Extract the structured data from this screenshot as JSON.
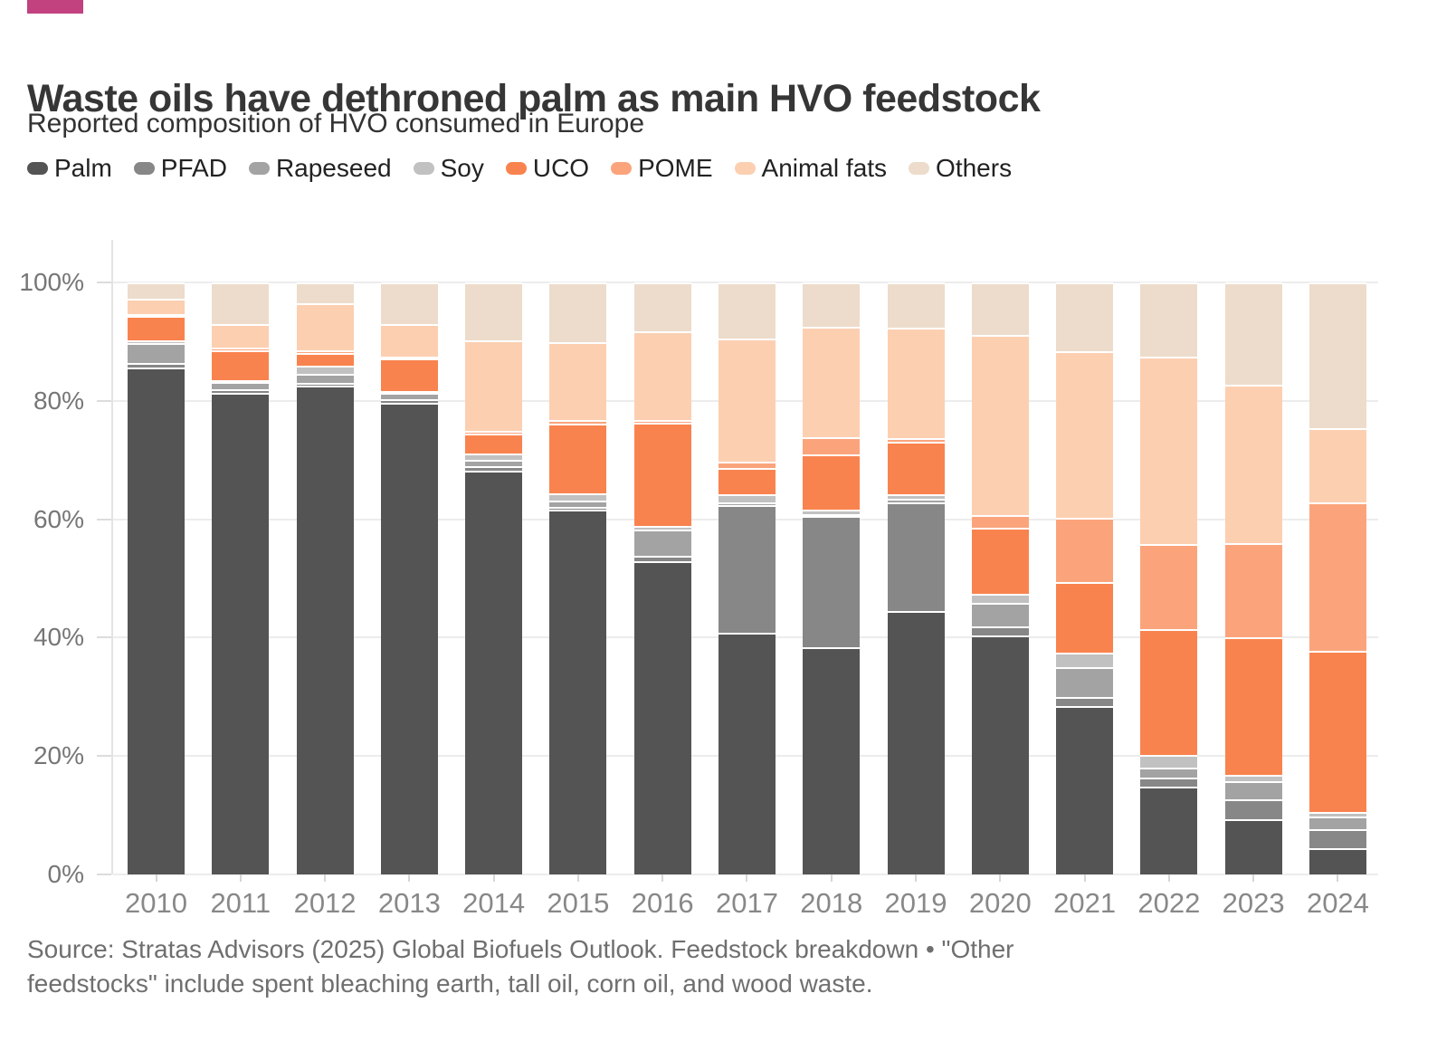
{
  "header": {
    "brand_color": "#c2417f",
    "title": "Waste oils have dethroned palm as main HVO feedstock",
    "subtitle": "Reported composition of HVO consumed in Europe"
  },
  "legend": [
    {
      "label": "Palm",
      "color": "#545454"
    },
    {
      "label": "PFAD",
      "color": "#878787"
    },
    {
      "label": "Rapeseed",
      "color": "#a3a3a3"
    },
    {
      "label": "Soy",
      "color": "#c1c1c1"
    },
    {
      "label": "UCO",
      "color": "#f9834e"
    },
    {
      "label": "POME",
      "color": "#fba47c"
    },
    {
      "label": "Animal fats",
      "color": "#fccfb1"
    },
    {
      "label": "Others",
      "color": "#eddccb"
    }
  ],
  "chart_data": {
    "type": "bar",
    "stacked": true,
    "unit": "%",
    "title": "Waste oils have dethroned palm as main HVO feedstock",
    "subtitle": "Reported composition of HVO consumed in Europe",
    "categories": [
      "2010",
      "2011",
      "2012",
      "2013",
      "2014",
      "2015",
      "2016",
      "2017",
      "2018",
      "2019",
      "2020",
      "2021",
      "2022",
      "2023",
      "2024"
    ],
    "series": [
      {
        "name": "Palm",
        "color": "#545454",
        "values": [
          85.6,
          81.4,
          82.6,
          79.6,
          68.2,
          61.6,
          52.9,
          40.9,
          38.4,
          44.5,
          40.4,
          28.5,
          14.9,
          9.3,
          4.4
        ]
      },
      {
        "name": "PFAD",
        "color": "#878787",
        "values": [
          0.8,
          0.5,
          0.5,
          0.7,
          0.7,
          0.5,
          0.9,
          21.5,
          22.1,
          18.4,
          1.5,
          1.5,
          1.5,
          3.4,
          3.2
        ]
      },
      {
        "name": "Rapeseed",
        "color": "#a3a3a3",
        "values": [
          3.3,
          1.3,
          1.4,
          1.1,
          1.1,
          1.1,
          4.5,
          0.4,
          0.4,
          0.5,
          4.0,
          5.0,
          1.7,
          3.0,
          2.2
        ]
      },
      {
        "name": "Soy",
        "color": "#c1c1c1",
        "values": [
          0.5,
          0.3,
          1.5,
          0.3,
          1.1,
          1.2,
          0.6,
          1.5,
          0.8,
          0.8,
          1.5,
          2.5,
          2.1,
          1.1,
          0.7
        ]
      },
      {
        "name": "UCO",
        "color": "#f9834e",
        "values": [
          4.1,
          5.1,
          2.1,
          5.4,
          3.4,
          11.8,
          17.4,
          4.3,
          9.3,
          8.9,
          11.1,
          11.9,
          21.2,
          23.3,
          27.3
        ]
      },
      {
        "name": "POME",
        "color": "#fba47c",
        "values": [
          0.4,
          0.4,
          0.4,
          0.4,
          0.5,
          0.5,
          0.5,
          1.2,
          2.9,
          0.6,
          2.2,
          10.9,
          14.4,
          15.9,
          25.1
        ]
      },
      {
        "name": "Animal fats",
        "color": "#fccfb1",
        "values": [
          2.6,
          3.9,
          8.0,
          5.5,
          15.3,
          13.2,
          14.9,
          20.7,
          18.6,
          18.6,
          30.5,
          28.1,
          31.6,
          26.8,
          12.5
        ]
      },
      {
        "name": "Others",
        "color": "#eddccb",
        "values": [
          2.7,
          7.1,
          3.5,
          7.0,
          9.7,
          10.1,
          8.3,
          9.5,
          7.5,
          7.7,
          8.8,
          11.6,
          12.6,
          17.2,
          24.6
        ]
      }
    ],
    "y_axis": {
      "ticks": [
        0,
        20,
        40,
        60,
        80,
        100
      ],
      "tick_suffix": "%",
      "ylim": [
        0,
        100
      ],
      "grid": true
    },
    "x_axis": {
      "label": ""
    },
    "legend_position": "top"
  },
  "footer": {
    "source": "Source: Stratas Advisors (2025) Global Biofuels Outlook. Feedstock breakdown • \"Other feedstocks\" include spent bleaching earth, tall oil, corn oil, and wood waste."
  }
}
